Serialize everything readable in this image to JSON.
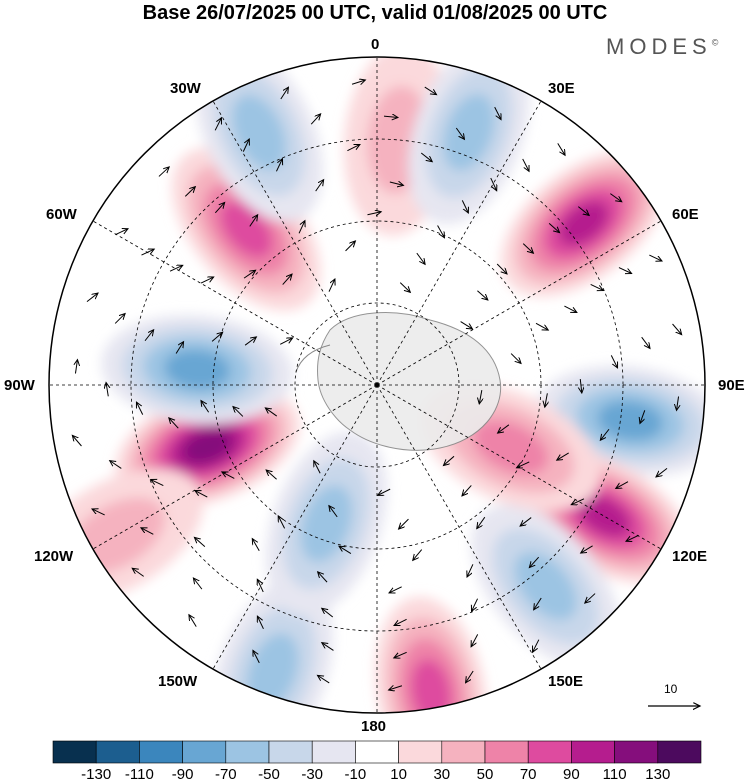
{
  "title": "Base 26/07/2025 00 UTC, valid 01/08/2025 00 UTC",
  "logo": "MODES",
  "logo_mark": "©",
  "lon_labels": {
    "top": "0",
    "bottom": "180",
    "left": "90W",
    "right": "90E",
    "l30": "30W",
    "l60": "60W",
    "l120": "120W",
    "l150": "150W",
    "r30": "30E",
    "r60": "60E",
    "r120": "120E",
    "r150": "150E"
  },
  "reference_vector": "10",
  "colorbar": {
    "colors": [
      "#08304f",
      "#1c5e8f",
      "#3b86bd",
      "#68a6d3",
      "#9cc4e3",
      "#c8d7ea",
      "#e6e6f1",
      "#ffffff",
      "#fbd9dc",
      "#f5b2bf",
      "#ee83a8",
      "#de4b9f",
      "#b51d8e",
      "#850e7c",
      "#4c0a5e"
    ],
    "ticks": [
      "-130",
      "-110",
      "-90",
      "-70",
      "-50",
      "-30",
      "-10",
      "10",
      "30",
      "50",
      "70",
      "90",
      "110",
      "130"
    ]
  },
  "anomaly_centers": [
    {
      "lon": -160,
      "r": 0.93,
      "value": -60
    },
    {
      "lon": -110,
      "r": 0.55,
      "value": 110
    },
    {
      "lon": -85,
      "r": 0.55,
      "value": -70
    },
    {
      "lon": -40,
      "r": 0.62,
      "value": 70
    },
    {
      "lon": -25,
      "r": 0.85,
      "value": -60
    },
    {
      "lon": 5,
      "r": 0.75,
      "value": 30
    },
    {
      "lon": 20,
      "r": 0.82,
      "value": -60
    },
    {
      "lon": 52,
      "r": 0.8,
      "value": 90
    },
    {
      "lon": 98,
      "r": 0.78,
      "value": -80
    },
    {
      "lon": 120,
      "r": 0.8,
      "value": 100
    },
    {
      "lon": 140,
      "r": 0.8,
      "value": -60
    },
    {
      "lon": 115,
      "r": 0.45,
      "value": 50
    },
    {
      "lon": 170,
      "r": 0.95,
      "value": 70
    },
    {
      "lon": -160,
      "r": 0.45,
      "value": -50
    },
    {
      "lon": -120,
      "r": 0.92,
      "value": 30
    }
  ]
}
